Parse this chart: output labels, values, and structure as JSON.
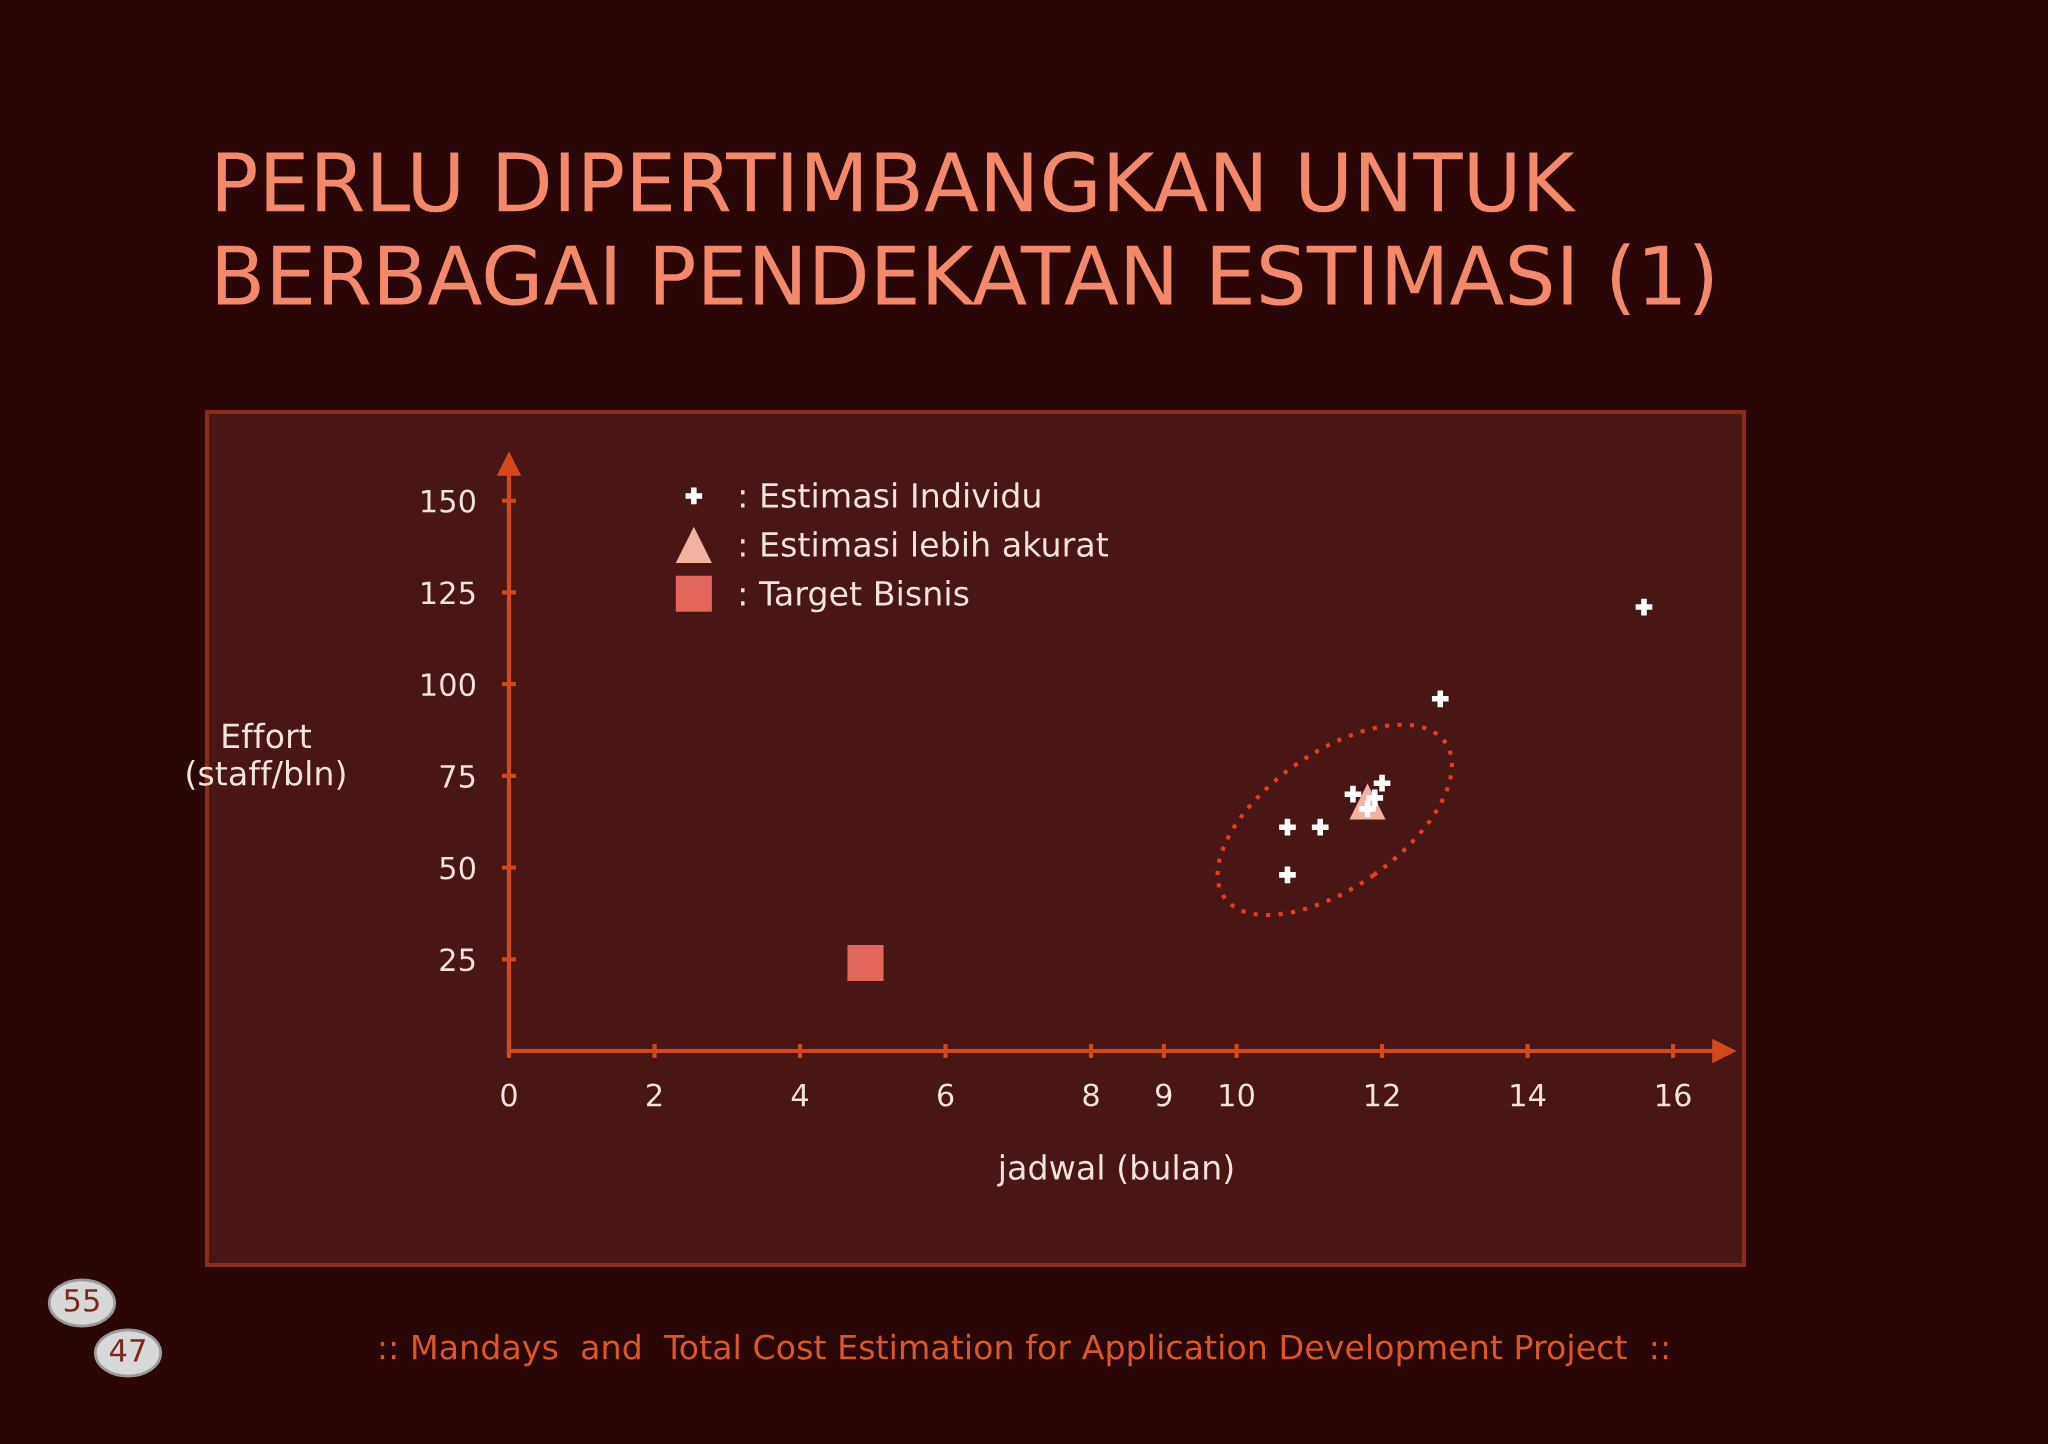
{
  "chart_data": {
    "type": "scatter",
    "title": "PERLU DIPERTIMBANGKAN UNTUK\nBERBAGAI PENDEKATAN ESTIMASI (1)",
    "xlabel": "jadwal (bulan)",
    "ylabel": "Effort\n(staff/bln)",
    "series": [
      {
        "name": ": Estimasi Individu",
        "color": "#ffffff",
        "marker": "cross",
        "x": [
          10.7,
          11.15,
          10.7,
          11.6,
          12.0,
          11.9,
          11.8,
          12.8,
          15.6
        ],
        "values": [
          61,
          61,
          48,
          70,
          73,
          69,
          66,
          96,
          121
        ]
      },
      {
        "name": ": Estimasi lebih akurat",
        "color": "#f2b2a2",
        "marker": "triangle",
        "x": [
          11.8
        ],
        "values": [
          68
        ]
      },
      {
        "name": ": Target Bisnis",
        "color": "#e2675a",
        "marker": "square",
        "x": [
          4.9
        ],
        "values": [
          24
        ]
      }
    ],
    "xlim": [
      0,
      16.7
    ],
    "xticks": [
      0,
      2,
      4,
      6,
      8,
      9,
      10,
      12,
      14,
      16
    ],
    "ylim": [
      0,
      160
    ],
    "yticks": [
      25,
      50,
      75,
      100,
      125,
      150
    ],
    "grid": false,
    "legend": "top left",
    "annotations": [
      ":: Mandays  and  Total Cost Estimation for Application Development Project  ::",
      "55",
      "47"
    ]
  }
}
